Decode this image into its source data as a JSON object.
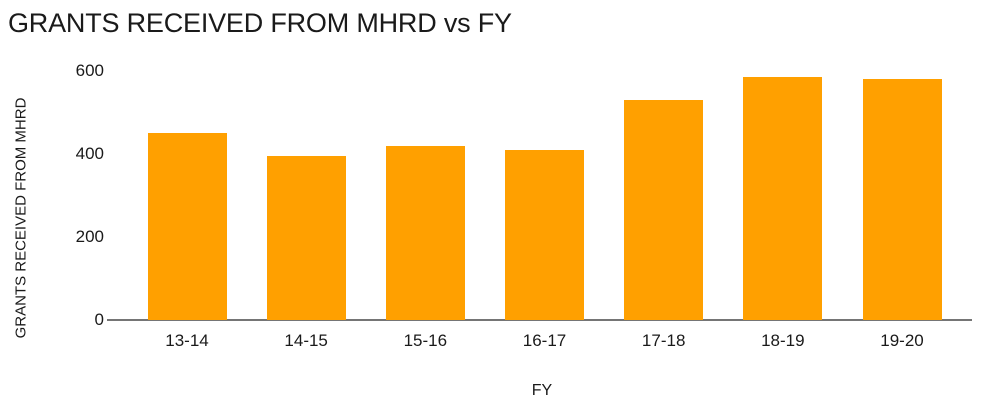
{
  "chart_data": {
    "type": "bar",
    "title": "GRANTS RECEIVED FROM MHRD vs FY",
    "xlabel": "FY",
    "ylabel": "GRANTS RECEIVED FROM MHRD",
    "categories": [
      "13-14",
      "14-15",
      "15-16",
      "16-17",
      "17-18",
      "18-19",
      "19-20"
    ],
    "values": [
      450,
      395,
      420,
      410,
      530,
      585,
      580
    ],
    "yticks": [
      0,
      200,
      400,
      600
    ],
    "ylim": [
      0,
      600
    ],
    "grid": false,
    "legend": false,
    "bar_color": "#FFA000",
    "axis_color": "#757575",
    "text_color": "#1a1a1a"
  }
}
